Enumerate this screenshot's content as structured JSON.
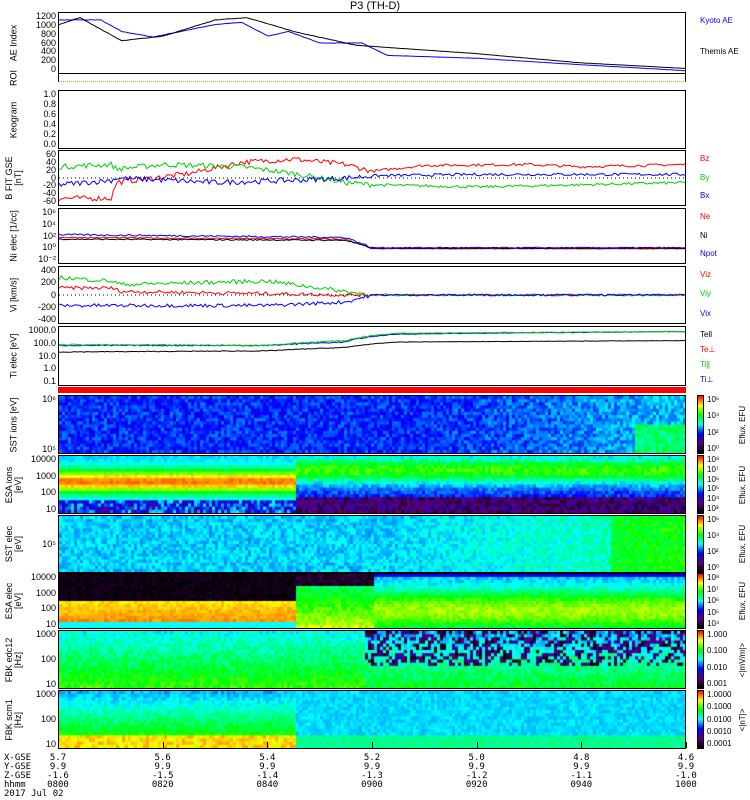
{
  "title": "P3 (TH-D)",
  "colors": {
    "red": "#ff0000",
    "green": "#00d000",
    "blue": "#0000ff",
    "black": "#000000"
  },
  "panels": [
    {
      "id": "ae",
      "label": "AE Index",
      "ticks": [
        "1200",
        "1000",
        "800",
        "600",
        "400",
        "200",
        "0"
      ],
      "legend": [
        "Kyoto AE",
        "Themis AE"
      ]
    },
    {
      "id": "roi",
      "label": "ROI"
    },
    {
      "id": "keogram",
      "label": "Keogram",
      "ticks": [
        "1.0",
        "0.8",
        "0.6",
        "0.4",
        "0.2",
        "0.0"
      ]
    },
    {
      "id": "bfit",
      "label": "B FIT GSE [nT]",
      "ticks": [
        "60",
        "40",
        "20",
        "0",
        "-20",
        "-40",
        "-60"
      ],
      "legend": [
        "Bz",
        "By",
        "Bx"
      ]
    },
    {
      "id": "ni",
      "label": "Ni elec [1/cc]",
      "ticks": [
        "10⁶",
        "10⁴",
        "10²",
        "10⁰",
        "10⁻²"
      ],
      "legend": [
        "Ne",
        "Ni",
        "Npot"
      ]
    },
    {
      "id": "vi",
      "label": "Vi [km/s]",
      "ticks": [
        "400",
        "200",
        "0",
        "-200",
        "-400"
      ],
      "legend": [
        "Viz",
        "Viy",
        "Vix"
      ]
    },
    {
      "id": "ti",
      "label": "Ti elec [eV]",
      "ticks": [
        "1000.0",
        "100.0",
        "10.0",
        "1.0",
        "0.1"
      ],
      "legend": [
        "Tell",
        "Te⊥",
        "Ti∥",
        "Ti⊥"
      ]
    },
    {
      "id": "sst_i",
      "label": "SST ions [eV]",
      "ticks": [
        "10⁶",
        "10⁵"
      ],
      "cbar": [
        "10⁶",
        "10⁴",
        "10²",
        "10⁰"
      ],
      "cbar_title": "Eflux, EFU"
    },
    {
      "id": "esa_i",
      "label": "ESA ions [eV]",
      "ticks": [
        "10000",
        "1000",
        "100",
        "10"
      ],
      "cbar": [
        "10⁸",
        "10⁷",
        "10⁶",
        "10⁵",
        "10⁴",
        "10³"
      ],
      "cbar_title": "Eflux, EFU"
    },
    {
      "id": "sst_e",
      "label": "SST elec [eV]",
      "ticks": [
        "10⁵"
      ],
      "cbar": [
        "10⁶",
        "10⁴",
        "10²",
        "10⁰"
      ],
      "cbar_title": "Eflux, EFU"
    },
    {
      "id": "esa_e",
      "label": "ESA elec [eV]",
      "ticks": [
        "10000",
        "1000",
        "100",
        "10"
      ],
      "cbar": [
        "10⁸",
        "10⁷",
        "10⁶",
        "10⁵",
        "10⁴"
      ],
      "cbar_title": "Eflux, EFU"
    },
    {
      "id": "fbk_e",
      "label": "FBK edc12 [Hz]",
      "ticks": [
        "1000",
        "100",
        "10"
      ],
      "cbar": [
        "1.000",
        "0.100",
        "0.010",
        "0.001"
      ],
      "cbar_title": "<|mV/m|>"
    },
    {
      "id": "fbk_b",
      "label": "FBK scm1 [Hz]",
      "ticks": [
        "1000",
        "100",
        "10"
      ],
      "cbar": [
        "1.0000",
        "0.1000",
        "0.0100",
        "0.0010",
        "0.0001"
      ],
      "cbar_title": "<|nT|>"
    }
  ],
  "ephemeris": {
    "row_labels": [
      "X-GSE",
      "Y-GSE",
      "Z-GSE",
      "hhmm"
    ],
    "date": "2017 Jul 02",
    "columns": [
      [
        "5.7",
        "9.9",
        "-1.6",
        "0800"
      ],
      [
        "5.6",
        "9.9",
        "-1.5",
        "0820"
      ],
      [
        "5.4",
        "9.9",
        "-1.4",
        "0840"
      ],
      [
        "5.2",
        "9.9",
        "-1.3",
        "0900"
      ],
      [
        "5.0",
        "9.9",
        "-1.2",
        "0920"
      ],
      [
        "4.8",
        "9.9",
        "-1.1",
        "0940"
      ],
      [
        "4.6",
        "9.9",
        "-1.0",
        "1000"
      ]
    ]
  },
  "chart_data": {
    "type": "line",
    "x_unit": "minutes since 0800 UT",
    "xlim": [
      0,
      120
    ],
    "series": {
      "kyoto_ae": [
        [
          0,
          1150
        ],
        [
          8,
          1150
        ],
        [
          12,
          900
        ],
        [
          18,
          780
        ],
        [
          30,
          1050
        ],
        [
          35,
          1100
        ],
        [
          40,
          800
        ],
        [
          44,
          900
        ],
        [
          50,
          650
        ],
        [
          58,
          650
        ],
        [
          63,
          380
        ],
        [
          80,
          320
        ],
        [
          100,
          180
        ],
        [
          120,
          50
        ]
      ],
      "themis_ae": [
        [
          0,
          1050
        ],
        [
          4,
          1200
        ],
        [
          12,
          700
        ],
        [
          20,
          800
        ],
        [
          30,
          1150
        ],
        [
          36,
          1200
        ],
        [
          45,
          900
        ],
        [
          57,
          600
        ],
        [
          80,
          420
        ],
        [
          100,
          220
        ],
        [
          120,
          100
        ]
      ],
      "bz": [
        [
          0,
          -45
        ],
        [
          10,
          -45
        ],
        [
          11,
          -10
        ],
        [
          25,
          10
        ],
        [
          35,
          35
        ],
        [
          45,
          42
        ],
        [
          55,
          30
        ],
        [
          60,
          15
        ],
        [
          70,
          28
        ],
        [
          90,
          30
        ],
        [
          100,
          25
        ],
        [
          120,
          30
        ]
      ],
      "by": [
        [
          0,
          25
        ],
        [
          10,
          30
        ],
        [
          11,
          20
        ],
        [
          20,
          30
        ],
        [
          35,
          25
        ],
        [
          45,
          10
        ],
        [
          55,
          -10
        ],
        [
          60,
          -15
        ],
        [
          80,
          -20
        ],
        [
          100,
          -15
        ],
        [
          120,
          -10
        ]
      ],
      "bx": [
        [
          0,
          -15
        ],
        [
          10,
          -5
        ],
        [
          11,
          0
        ],
        [
          30,
          -10
        ],
        [
          45,
          -5
        ],
        [
          55,
          0
        ],
        [
          60,
          5
        ],
        [
          80,
          8
        ],
        [
          120,
          8
        ]
      ],
      "ne": [
        [
          0,
          1.5
        ],
        [
          55,
          1.2
        ],
        [
          60,
          -0.5
        ],
        [
          120,
          -0.5
        ]
      ],
      "ni": [
        [
          0,
          1.2
        ],
        [
          55,
          1.0
        ],
        [
          60,
          -0.4
        ],
        [
          120,
          -0.4
        ]
      ],
      "npot": [
        [
          0,
          2
        ],
        [
          55,
          1.5
        ],
        [
          60,
          -0.3
        ],
        [
          120,
          -0.3
        ]
      ],
      "viz": [
        [
          0,
          100
        ],
        [
          10,
          100
        ],
        [
          12,
          50
        ],
        [
          40,
          20
        ],
        [
          55,
          0
        ],
        [
          120,
          0
        ]
      ],
      "viy": [
        [
          0,
          250
        ],
        [
          10,
          200
        ],
        [
          12,
          150
        ],
        [
          40,
          200
        ],
        [
          55,
          50
        ],
        [
          60,
          0
        ],
        [
          120,
          0
        ]
      ],
      "vix": [
        [
          0,
          -150
        ],
        [
          40,
          -150
        ],
        [
          55,
          -100
        ],
        [
          60,
          0
        ],
        [
          120,
          0
        ]
      ],
      "tell": [
        [
          0,
          40
        ],
        [
          40,
          50
        ],
        [
          55,
          100
        ],
        [
          65,
          300
        ],
        [
          120,
          400
        ]
      ],
      "te_perp": [
        [
          0,
          150
        ],
        [
          40,
          150
        ],
        [
          55,
          300
        ],
        [
          65,
          1500
        ],
        [
          120,
          2500
        ]
      ],
      "ti_par": [
        [
          0,
          180
        ],
        [
          40,
          150
        ],
        [
          55,
          400
        ],
        [
          65,
          1800
        ],
        [
          120,
          2500
        ]
      ]
    }
  }
}
